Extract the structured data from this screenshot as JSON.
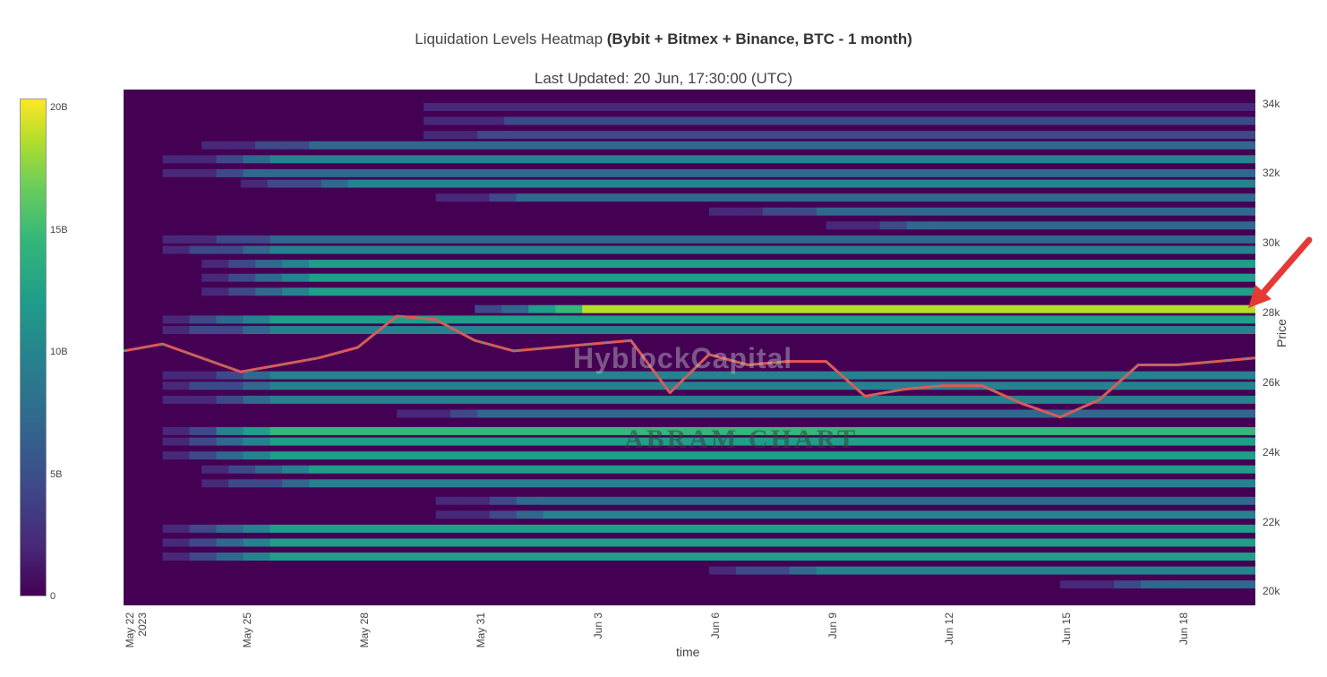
{
  "header": {
    "title_main": "Liquidation Levels Heatmap ",
    "title_bold": "(Bybit + Bitmex + Binance, BTC - 1 month)",
    "subtitle": "Last Updated: 20 Jun, 17:30:00 (UTC)"
  },
  "axes": {
    "y_label": "Price",
    "x_label": "time",
    "y_ticks": [
      "34k",
      "32k",
      "30k",
      "28k",
      "26k",
      "24k",
      "22k",
      "20k"
    ],
    "x_ticks": [
      "May 22\n2023",
      "May 25",
      "May 28",
      "May 31",
      "Jun 3",
      "Jun 6",
      "Jun 9",
      "Jun 12",
      "Jun 15",
      "Jun 18"
    ]
  },
  "colorbar": {
    "ticks": [
      "20B",
      "15B",
      "10B",
      "5B",
      "0"
    ],
    "colors": [
      "#440154",
      "#482878",
      "#3e4989",
      "#31688e",
      "#26828e",
      "#1f9e89",
      "#35b779",
      "#6ece58",
      "#b5de2b",
      "#fde725"
    ]
  },
  "watermarks": {
    "logo_text": "HyblockCapital",
    "channel_text": "ABRAM CHART"
  },
  "chart_data": {
    "type": "heatmap",
    "title": "Liquidation Levels Heatmap (Bybit + Bitmex + Binance, BTC - 1 month)",
    "subtitle": "Last Updated: 20 Jun, 17:30:00 (UTC)",
    "xlabel": "time",
    "ylabel": "Price",
    "x_range": [
      "2023-05-22",
      "2023-06-20"
    ],
    "ylim": [
      19600,
      34400
    ],
    "color_range": [
      0,
      20000000000
    ],
    "colorscale": "viridis",
    "colorbar_ticks": [
      0,
      5000000000,
      10000000000,
      15000000000,
      20000000000
    ],
    "bands": [
      {
        "price": 33900,
        "start": "2023-05-29",
        "level": 0.15
      },
      {
        "price": 33500,
        "start": "2023-05-29",
        "level": 0.2
      },
      {
        "price": 33100,
        "start": "2023-05-29",
        "level": 0.25
      },
      {
        "price": 32800,
        "start": "2023-05-24",
        "level": 0.3
      },
      {
        "price": 32400,
        "start": "2023-05-23",
        "level": 0.4
      },
      {
        "price": 32000,
        "start": "2023-05-23",
        "level": 0.35
      },
      {
        "price": 31700,
        "start": "2023-05-25",
        "level": 0.45
      },
      {
        "price": 31300,
        "start": "2023-05-30",
        "level": 0.35
      },
      {
        "price": 30900,
        "start": "2023-06-06",
        "level": 0.3
      },
      {
        "price": 30500,
        "start": "2023-06-09",
        "level": 0.35
      },
      {
        "price": 30100,
        "start": "2023-05-23",
        "level": 0.3
      },
      {
        "price": 29800,
        "start": "2023-05-23",
        "level": 0.45
      },
      {
        "price": 29400,
        "start": "2023-05-24",
        "level": 0.5
      },
      {
        "price": 29000,
        "start": "2023-05-24",
        "level": 0.55
      },
      {
        "price": 28600,
        "start": "2023-05-24",
        "level": 0.5
      },
      {
        "price": 28100,
        "start": "2023-05-31",
        "level": 0.9
      },
      {
        "price": 27800,
        "start": "2023-05-23",
        "level": 0.5
      },
      {
        "price": 27500,
        "start": "2023-05-23",
        "level": 0.45
      },
      {
        "price": 26200,
        "start": "2023-05-23",
        "level": 0.4
      },
      {
        "price": 25900,
        "start": "2023-05-23",
        "level": 0.45
      },
      {
        "price": 25500,
        "start": "2023-05-23",
        "level": 0.4
      },
      {
        "price": 25100,
        "start": "2023-05-29",
        "level": 0.35
      },
      {
        "price": 24600,
        "start": "2023-05-23",
        "level": 0.65
      },
      {
        "price": 24300,
        "start": "2023-05-23",
        "level": 0.6
      },
      {
        "price": 23900,
        "start": "2023-05-23",
        "level": 0.6
      },
      {
        "price": 23500,
        "start": "2023-05-24",
        "level": 0.5
      },
      {
        "price": 23100,
        "start": "2023-05-24",
        "level": 0.45
      },
      {
        "price": 22600,
        "start": "2023-05-30",
        "level": 0.35
      },
      {
        "price": 22200,
        "start": "2023-05-30",
        "level": 0.4
      },
      {
        "price": 21800,
        "start": "2023-05-23",
        "level": 0.5
      },
      {
        "price": 21400,
        "start": "2023-05-23",
        "level": 0.6
      },
      {
        "price": 21000,
        "start": "2023-05-23",
        "level": 0.5
      },
      {
        "price": 20600,
        "start": "2023-06-06",
        "level": 0.45
      },
      {
        "price": 20200,
        "start": "2023-06-15",
        "level": 0.35
      }
    ],
    "price_line": {
      "x": [
        "2023-05-22",
        "2023-05-23",
        "2023-05-24",
        "2023-05-25",
        "2023-05-26",
        "2023-05-27",
        "2023-05-28",
        "2023-05-29",
        "2023-05-30",
        "2023-05-31",
        "2023-06-01",
        "2023-06-02",
        "2023-06-03",
        "2023-06-04",
        "2023-06-05",
        "2023-06-06",
        "2023-06-07",
        "2023-06-08",
        "2023-06-09",
        "2023-06-10",
        "2023-06-11",
        "2023-06-12",
        "2023-06-13",
        "2023-06-14",
        "2023-06-15",
        "2023-06-16",
        "2023-06-17",
        "2023-06-18",
        "2023-06-19",
        "2023-06-20"
      ],
      "y": [
        26900,
        27100,
        26700,
        26300,
        26500,
        26700,
        27000,
        27900,
        27800,
        27200,
        26900,
        27000,
        27100,
        27200,
        25700,
        26800,
        26500,
        26600,
        26600,
        25600,
        25800,
        25900,
        25900,
        25400,
        25000,
        25500,
        26500,
        26500,
        26600,
        26700
      ]
    }
  }
}
